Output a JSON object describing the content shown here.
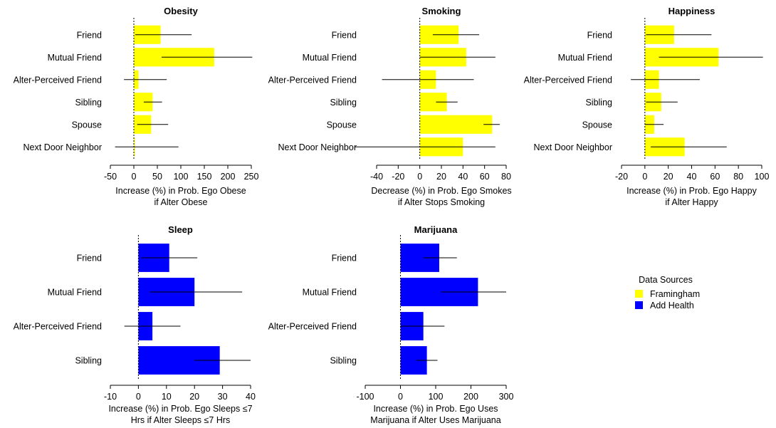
{
  "chart_data": [
    {
      "type": "bar",
      "orientation": "horizontal",
      "title": "Obesity",
      "categories": [
        "Friend",
        "Mutual Friend",
        "Alter-Perceived Friend",
        "Sibling",
        "Spouse",
        "Next Door Neighbor"
      ],
      "values": [
        57,
        171,
        10,
        40,
        37,
        2
      ],
      "ci_low": [
        3,
        59,
        -21,
        21,
        7,
        -40
      ],
      "ci_high": [
        123,
        252,
        70,
        60,
        73,
        95
      ],
      "color": "#ffff00",
      "data_source": "Framingham",
      "xlim": [
        -50,
        250
      ],
      "xticks": [
        -50,
        0,
        50,
        100,
        150,
        200,
        250
      ],
      "xlabel_lines": [
        "Increase (%) in Prob. Ego Obese",
        "if Alter Obese"
      ],
      "reference_line": 0
    },
    {
      "type": "bar",
      "orientation": "horizontal",
      "title": "Smoking",
      "categories": [
        "Friend",
        "Mutual Friend",
        "Alter-Perceived Friend",
        "Sibling",
        "Spouse",
        "Next Door Neighbor"
      ],
      "values": [
        36,
        43,
        15,
        25,
        67,
        40
      ],
      "ci_low": [
        12,
        0,
        -35,
        15,
        59,
        -60
      ],
      "ci_high": [
        55,
        70,
        50,
        35,
        74,
        70
      ],
      "color": "#ffff00",
      "data_source": "Framingham",
      "xlim": [
        -40,
        80
      ],
      "xticks": [
        -40,
        -20,
        0,
        20,
        40,
        60,
        80
      ],
      "xlabel_lines": [
        "Decrease (%) in Prob. Ego Smokes",
        "if Alter Stops Smoking"
      ],
      "reference_line": 0
    },
    {
      "type": "bar",
      "orientation": "horizontal",
      "title": "Happiness",
      "categories": [
        "Friend",
        "Mutual Friend",
        "Alter-Perceived Friend",
        "Sibling",
        "Spouse",
        "Next Door Neighbor"
      ],
      "values": [
        25,
        63,
        12,
        14,
        8,
        34
      ],
      "ci_low": [
        1,
        12,
        -12,
        1,
        0,
        5
      ],
      "ci_high": [
        57,
        101,
        47,
        28,
        16,
        70
      ],
      "color": "#ffff00",
      "data_source": "Framingham",
      "xlim": [
        -20,
        100
      ],
      "xticks": [
        -20,
        0,
        20,
        40,
        60,
        80,
        100
      ],
      "xlabel_lines": [
        "Increase (%) in Prob. Ego Happy",
        "if Alter Happy"
      ],
      "reference_line": 0
    },
    {
      "type": "bar",
      "orientation": "horizontal",
      "title": "Sleep",
      "categories": [
        "Friend",
        "Mutual Friend",
        "Alter-Perceived Friend",
        "Sibling"
      ],
      "values": [
        11,
        20,
        5,
        29
      ],
      "ci_low": [
        1,
        4,
        -5,
        20
      ],
      "ci_high": [
        21,
        37,
        15,
        40
      ],
      "color": "#0000ff",
      "data_source": "Add Health",
      "xlim": [
        -10,
        40
      ],
      "xticks": [
        -10,
        0,
        10,
        20,
        30,
        40
      ],
      "xlabel_lines": [
        "Increase (%) in Prob. Ego Sleeps ≤7",
        "Hrs if Alter Sleeps ≤7 Hrs"
      ],
      "reference_line": 0
    },
    {
      "type": "bar",
      "orientation": "horizontal",
      "title": "Marijuana",
      "categories": [
        "Friend",
        "Mutual Friend",
        "Alter-Perceived Friend",
        "Sibling"
      ],
      "values": [
        110,
        220,
        65,
        75
      ],
      "ci_low": [
        65,
        115,
        0,
        45
      ],
      "ci_high": [
        160,
        300,
        125,
        105
      ],
      "color": "#0000ff",
      "data_source": "Add Health",
      "xlim": [
        -100,
        300
      ],
      "xticks": [
        -100,
        0,
        100,
        200,
        300
      ],
      "xlabel_lines": [
        "Increase (%) in Prob. Ego Uses",
        "Marijuana if Alter Uses Marijuana"
      ],
      "reference_line": 0
    }
  ],
  "legend": {
    "title": "Data Sources",
    "items": [
      {
        "label": "Framingham",
        "color": "#ffff00"
      },
      {
        "label": "Add Health",
        "color": "#0000ff"
      }
    ]
  }
}
